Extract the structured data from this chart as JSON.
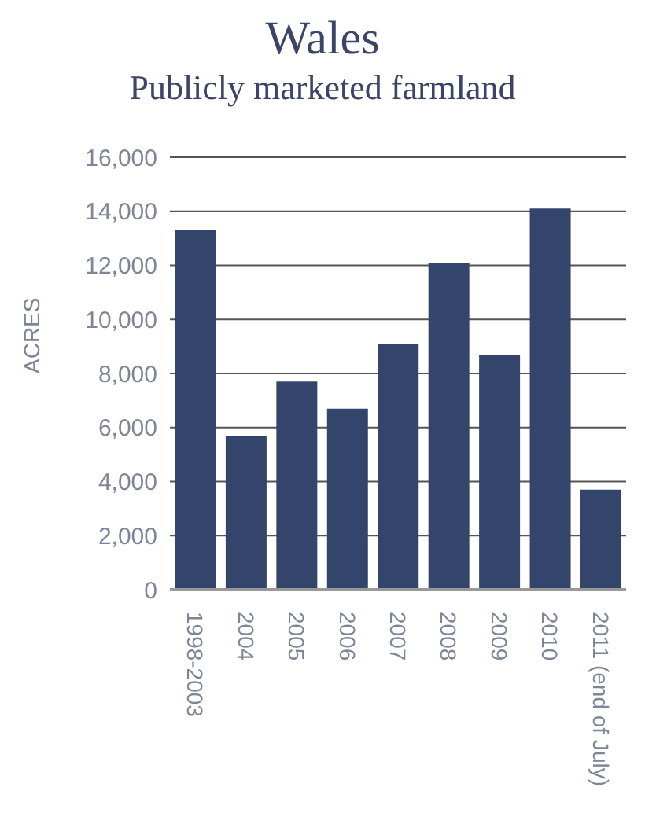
{
  "chart_data": {
    "type": "bar",
    "title": "Wales",
    "subtitle": "Publicly marketed farmland",
    "ylabel": "ACRES",
    "categories": [
      "1998-2003",
      "2004",
      "2005",
      "2006",
      "2007",
      "2008",
      "2009",
      "2010",
      "2011 (end of July)"
    ],
    "values": [
      13300,
      5700,
      7700,
      6700,
      9100,
      12100,
      8700,
      14100,
      3700
    ],
    "color": "#34456b",
    "ylim": [
      0,
      16000
    ],
    "yticks": [
      {
        "value": 0,
        "label": "0"
      },
      {
        "value": 2000,
        "label": "2,000"
      },
      {
        "value": 4000,
        "label": "4,000"
      },
      {
        "value": 6000,
        "label": "6,000"
      },
      {
        "value": 8000,
        "label": "8,000"
      },
      {
        "value": 10000,
        "label": "10,000"
      },
      {
        "value": 12000,
        "label": "12,000"
      },
      {
        "value": 14000,
        "label": "14,000"
      },
      {
        "value": 16000,
        "label": "16,000"
      }
    ],
    "grid": "y"
  }
}
